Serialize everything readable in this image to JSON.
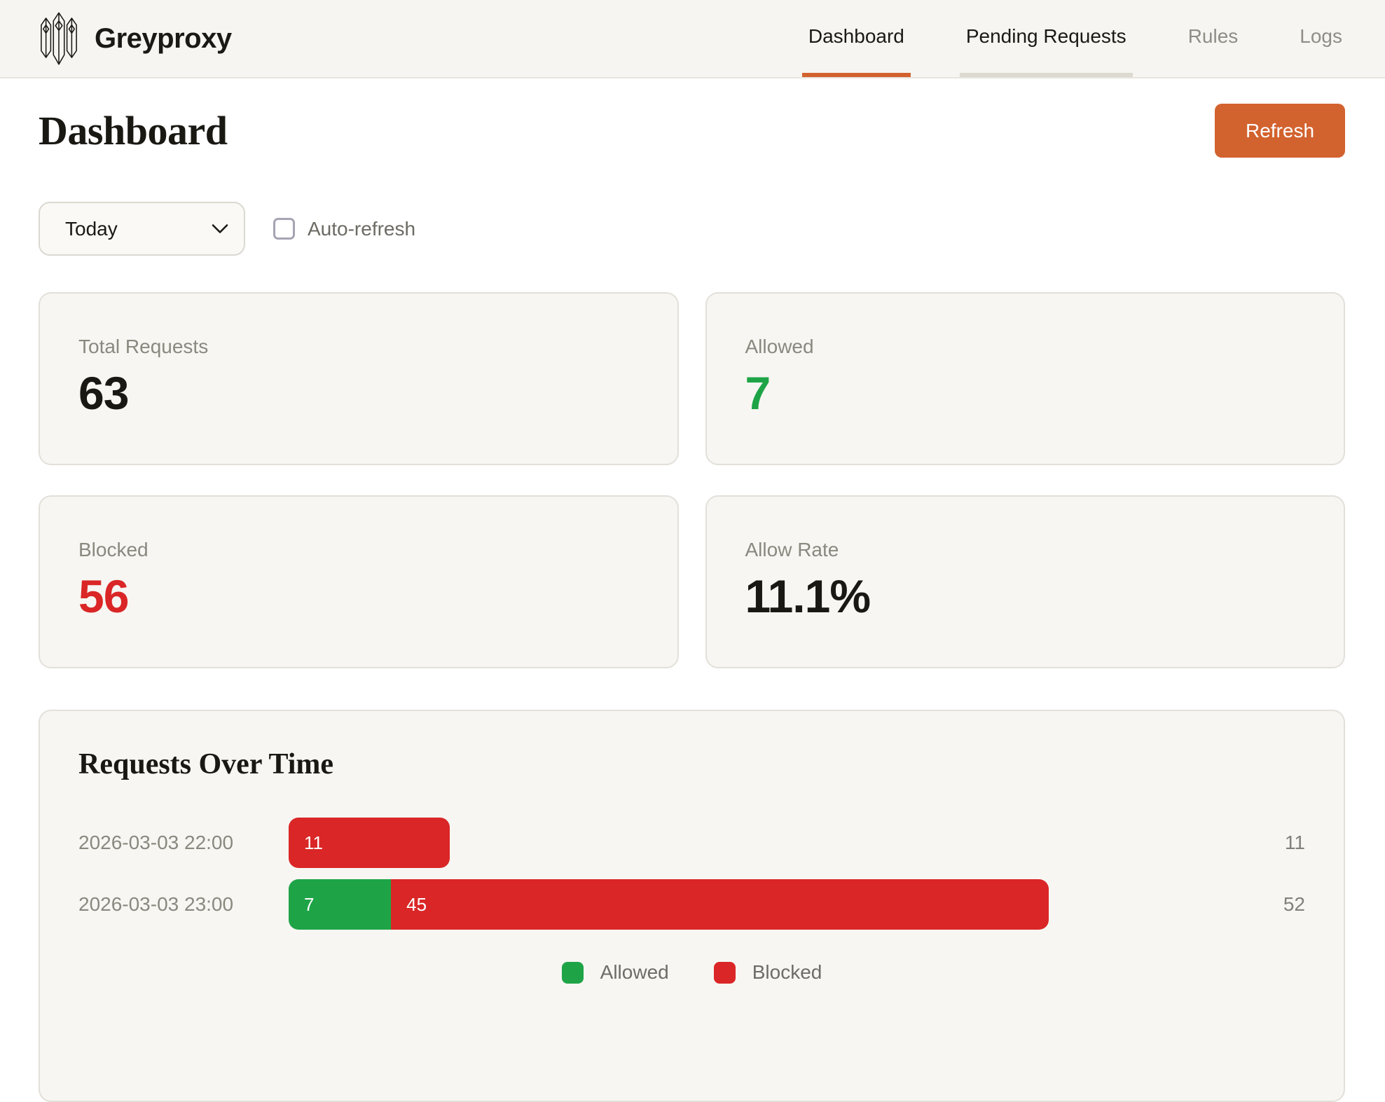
{
  "brand": {
    "name": "Greyproxy"
  },
  "nav": {
    "items": [
      {
        "label": "Dashboard",
        "state": "active"
      },
      {
        "label": "Pending Requests",
        "state": "highlighted"
      },
      {
        "label": "Rules",
        "state": "default"
      },
      {
        "label": "Logs",
        "state": "default"
      }
    ]
  },
  "page": {
    "title": "Dashboard",
    "refresh_label": "Refresh"
  },
  "controls": {
    "range_selected": "Today",
    "auto_refresh_label": "Auto-refresh",
    "auto_refresh_checked": false
  },
  "stats": [
    {
      "label": "Total Requests",
      "value": "63",
      "value_color": "#191813"
    },
    {
      "label": "Allowed",
      "value": "7",
      "value_color": "#1ea447"
    },
    {
      "label": "Blocked",
      "value": "56",
      "value_color": "#da2626"
    },
    {
      "label": "Allow Rate",
      "value": "11.1%",
      "value_color": "#191813"
    }
  ],
  "chart_data": {
    "type": "bar",
    "orientation": "horizontal",
    "stacked": true,
    "title": "Requests Over Time",
    "categories": [
      "2026-03-03 22:00",
      "2026-03-03 23:00"
    ],
    "series": [
      {
        "name": "Allowed",
        "color": "#1ea447",
        "values": [
          0,
          7
        ]
      },
      {
        "name": "Blocked",
        "color": "#da2626",
        "values": [
          11,
          45
        ]
      }
    ],
    "totals": [
      11,
      52
    ],
    "x_max": 52,
    "grid": false,
    "legend": [
      "Allowed",
      "Blocked"
    ],
    "legend_position": "bottom"
  },
  "colors": {
    "accent_orange": "#d2622e",
    "green": "#1ea447",
    "red": "#da2626"
  }
}
